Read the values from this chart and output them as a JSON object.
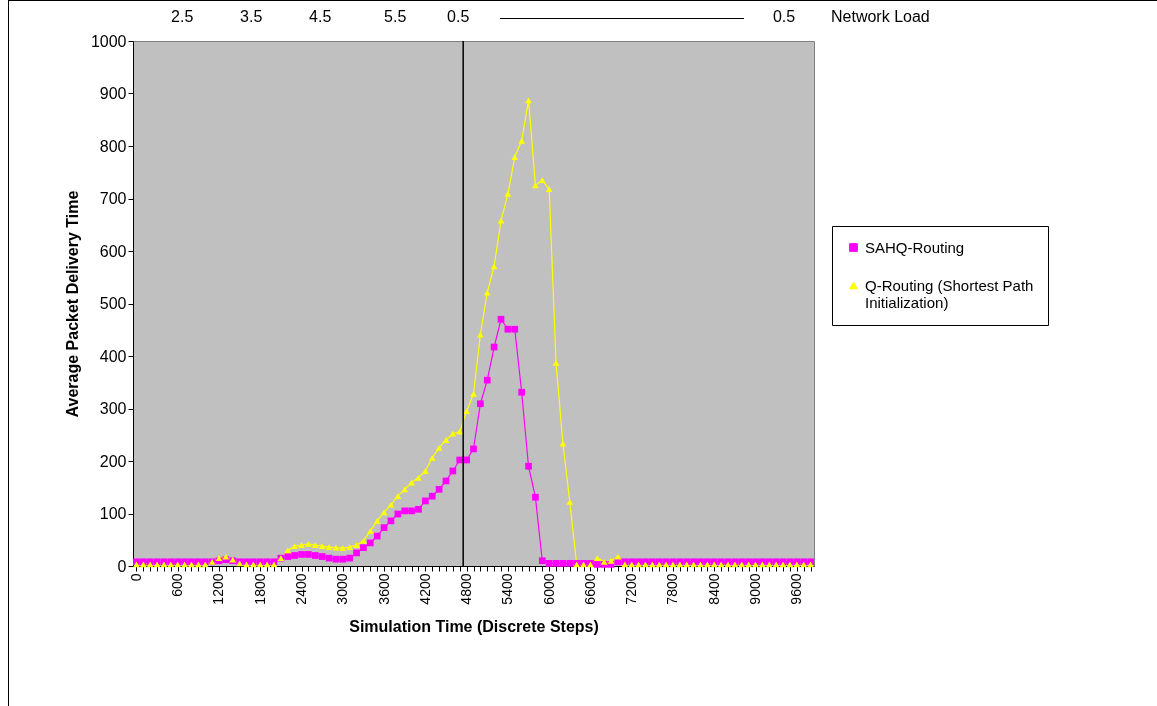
{
  "chart_data": {
    "type": "line",
    "xlabel": "Simulation Time (Discrete Steps)",
    "ylabel": "Average Packet Delivery Time",
    "x": [
      0,
      100,
      200,
      300,
      400,
      500,
      600,
      700,
      800,
      900,
      1000,
      1100,
      1200,
      1300,
      1400,
      1500,
      1600,
      1700,
      1800,
      1900,
      2000,
      2100,
      2200,
      2300,
      2400,
      2500,
      2600,
      2700,
      2800,
      2900,
      3000,
      3100,
      3200,
      3300,
      3400,
      3500,
      3600,
      3700,
      3800,
      3900,
      4000,
      4100,
      4200,
      4300,
      4400,
      4500,
      4600,
      4700,
      4800,
      4900,
      5000,
      5100,
      5200,
      5300,
      5400,
      5500,
      5600,
      5700,
      5800,
      5900,
      6000,
      6100,
      6200,
      6300,
      6400,
      6500,
      6600,
      6700,
      6800,
      6900,
      7000,
      7100,
      7200,
      7300,
      7400,
      7500,
      7600,
      7700,
      7800,
      7900,
      8000,
      8100,
      8200,
      8300,
      8400,
      8500,
      8600,
      8700,
      8800,
      8900,
      9000,
      9100,
      9200,
      9300,
      9400,
      9500,
      9600,
      9700,
      9800
    ],
    "series": [
      {
        "name": "SAHQ-Routing",
        "color": "#ff00ff",
        "marker": "square",
        "values": [
          8,
          8,
          8,
          8,
          8,
          8,
          8,
          8,
          8,
          8,
          8,
          8,
          10,
          12,
          10,
          8,
          8,
          8,
          8,
          8,
          8,
          15,
          18,
          20,
          22,
          22,
          20,
          18,
          15,
          13,
          13,
          15,
          25,
          35,
          44,
          57,
          73,
          86,
          99,
          105,
          105,
          108,
          124,
          133,
          146,
          162,
          181,
          202,
          202,
          223,
          309,
          354,
          417,
          470,
          451,
          451,
          331,
          190,
          131,
          10,
          5,
          5,
          5,
          5,
          5,
          5,
          5,
          3,
          3,
          3,
          8,
          8,
          8,
          8,
          8,
          8,
          8,
          8,
          8,
          8,
          8,
          8,
          8,
          8,
          8,
          8,
          8,
          8,
          8,
          8,
          8,
          8,
          8,
          8,
          8,
          8,
          8,
          8,
          8
        ]
      },
      {
        "name": "Q-Routing (Shortest Path Initialization)",
        "color": "#ffff00",
        "marker": "triangle",
        "values": [
          3,
          3,
          3,
          3,
          3,
          3,
          3,
          3,
          3,
          3,
          3,
          8,
          15,
          18,
          12,
          5,
          3,
          3,
          3,
          3,
          3,
          15,
          30,
          38,
          40,
          42,
          40,
          38,
          36,
          35,
          34,
          36,
          40,
          48,
          67,
          86,
          102,
          117,
          133,
          146,
          159,
          168,
          181,
          206,
          225,
          240,
          252,
          256,
          295,
          328,
          441,
          521,
          571,
          658,
          709,
          779,
          810,
          887,
          725,
          735,
          718,
          387,
          233,
          122,
          3,
          3,
          3,
          15,
          8,
          10,
          18,
          3,
          3,
          3,
          3,
          3,
          3,
          3,
          3,
          3,
          3,
          3,
          3,
          3,
          3,
          3,
          3,
          3,
          3,
          3,
          3,
          3,
          3,
          3,
          3,
          3,
          3,
          3,
          3
        ]
      }
    ],
    "xlim": [
      -50,
      9850
    ],
    "xticks": [
      0,
      {
        "value": 100,
        "label": null
      },
      {
        "value": 200,
        "label": null
      },
      {
        "value": 300,
        "label": null
      },
      {
        "value": 400,
        "label": null
      },
      {
        "value": 500,
        "label": null
      },
      600,
      {
        "value": 700,
        "label": null
      },
      {
        "value": 800,
        "label": null
      },
      {
        "value": 900,
        "label": null
      },
      {
        "value": 1000,
        "label": null
      },
      {
        "value": 1100,
        "label": null
      },
      1200,
      {
        "value": 1300,
        "label": null
      },
      {
        "value": 1400,
        "label": null
      },
      {
        "value": 1500,
        "label": null
      },
      {
        "value": 1600,
        "label": null
      },
      {
        "value": 1700,
        "label": null
      },
      1800,
      {
        "value": 1900,
        "label": null
      },
      {
        "value": 2000,
        "label": null
      },
      {
        "value": 2100,
        "label": null
      },
      {
        "value": 2200,
        "label": null
      },
      {
        "value": 2300,
        "label": null
      },
      2400,
      {
        "value": 2500,
        "label": null
      },
      {
        "value": 2600,
        "label": null
      },
      {
        "value": 2700,
        "label": null
      },
      {
        "value": 2800,
        "label": null
      },
      {
        "value": 2900,
        "label": null
      },
      3000,
      {
        "value": 3100,
        "label": null
      },
      {
        "value": 3200,
        "label": null
      },
      {
        "value": 3300,
        "label": null
      },
      {
        "value": 3400,
        "label": null
      },
      {
        "value": 3500,
        "label": null
      },
      3600,
      {
        "value": 3700,
        "label": null
      },
      {
        "value": 3800,
        "label": null
      },
      {
        "value": 3900,
        "label": null
      },
      {
        "value": 4000,
        "label": null
      },
      {
        "value": 4100,
        "label": null
      },
      4200,
      {
        "value": 4300,
        "label": null
      },
      {
        "value": 4400,
        "label": null
      },
      {
        "value": 4500,
        "label": null
      },
      {
        "value": 4600,
        "label": null
      },
      {
        "value": 4700,
        "label": null
      },
      4800,
      {
        "value": 4900,
        "label": null
      },
      {
        "value": 5000,
        "label": null
      },
      {
        "value": 5100,
        "label": null
      },
      {
        "value": 5200,
        "label": null
      },
      {
        "value": 5300,
        "label": null
      },
      5400,
      {
        "value": 5500,
        "label": null
      },
      {
        "value": 5600,
        "label": null
      },
      {
        "value": 5700,
        "label": null
      },
      {
        "value": 5800,
        "label": null
      },
      {
        "value": 5900,
        "label": null
      },
      6000,
      {
        "value": 6100,
        "label": null
      },
      {
        "value": 6200,
        "label": null
      },
      {
        "value": 6300,
        "label": null
      },
      {
        "value": 6400,
        "label": null
      },
      {
        "value": 6500,
        "label": null
      },
      6600,
      {
        "value": 6700,
        "label": null
      },
      {
        "value": 6800,
        "label": null
      },
      {
        "value": 6900,
        "label": null
      },
      {
        "value": 7000,
        "label": null
      },
      {
        "value": 7100,
        "label": null
      },
      7200,
      {
        "value": 7300,
        "label": null
      },
      {
        "value": 7400,
        "label": null
      },
      {
        "value": 7500,
        "label": null
      },
      {
        "value": 7600,
        "label": null
      },
      {
        "value": 7700,
        "label": null
      },
      7800,
      {
        "value": 7900,
        "label": null
      },
      {
        "value": 8000,
        "label": null
      },
      {
        "value": 8100,
        "label": null
      },
      {
        "value": 8200,
        "label": null
      },
      {
        "value": 8300,
        "label": null
      },
      8400,
      {
        "value": 8500,
        "label": null
      },
      {
        "value": 8600,
        "label": null
      },
      {
        "value": 8700,
        "label": null
      },
      {
        "value": 8800,
        "label": null
      },
      {
        "value": 8900,
        "label": null
      },
      9000,
      {
        "value": 9100,
        "label": null
      },
      {
        "value": 9200,
        "label": null
      },
      {
        "value": 9300,
        "label": null
      },
      {
        "value": 9400,
        "label": null
      },
      {
        "value": 9500,
        "label": null
      },
      9600,
      {
        "value": 9700,
        "label": null
      },
      {
        "value": 9800,
        "label": null
      }
    ],
    "ylim": [
      0,
      1000
    ],
    "yticks": [
      0,
      100,
      200,
      300,
      400,
      500,
      600,
      700,
      800,
      900,
      1000
    ],
    "ref_lines": [
      {
        "axis": "x",
        "value": 4750,
        "color": "#000000"
      }
    ],
    "annotations": [
      "2.5",
      "3.5",
      "4.5",
      "5.5",
      "0.5",
      "0.5",
      "Network Load"
    ],
    "legend": "right",
    "grid": false
  }
}
